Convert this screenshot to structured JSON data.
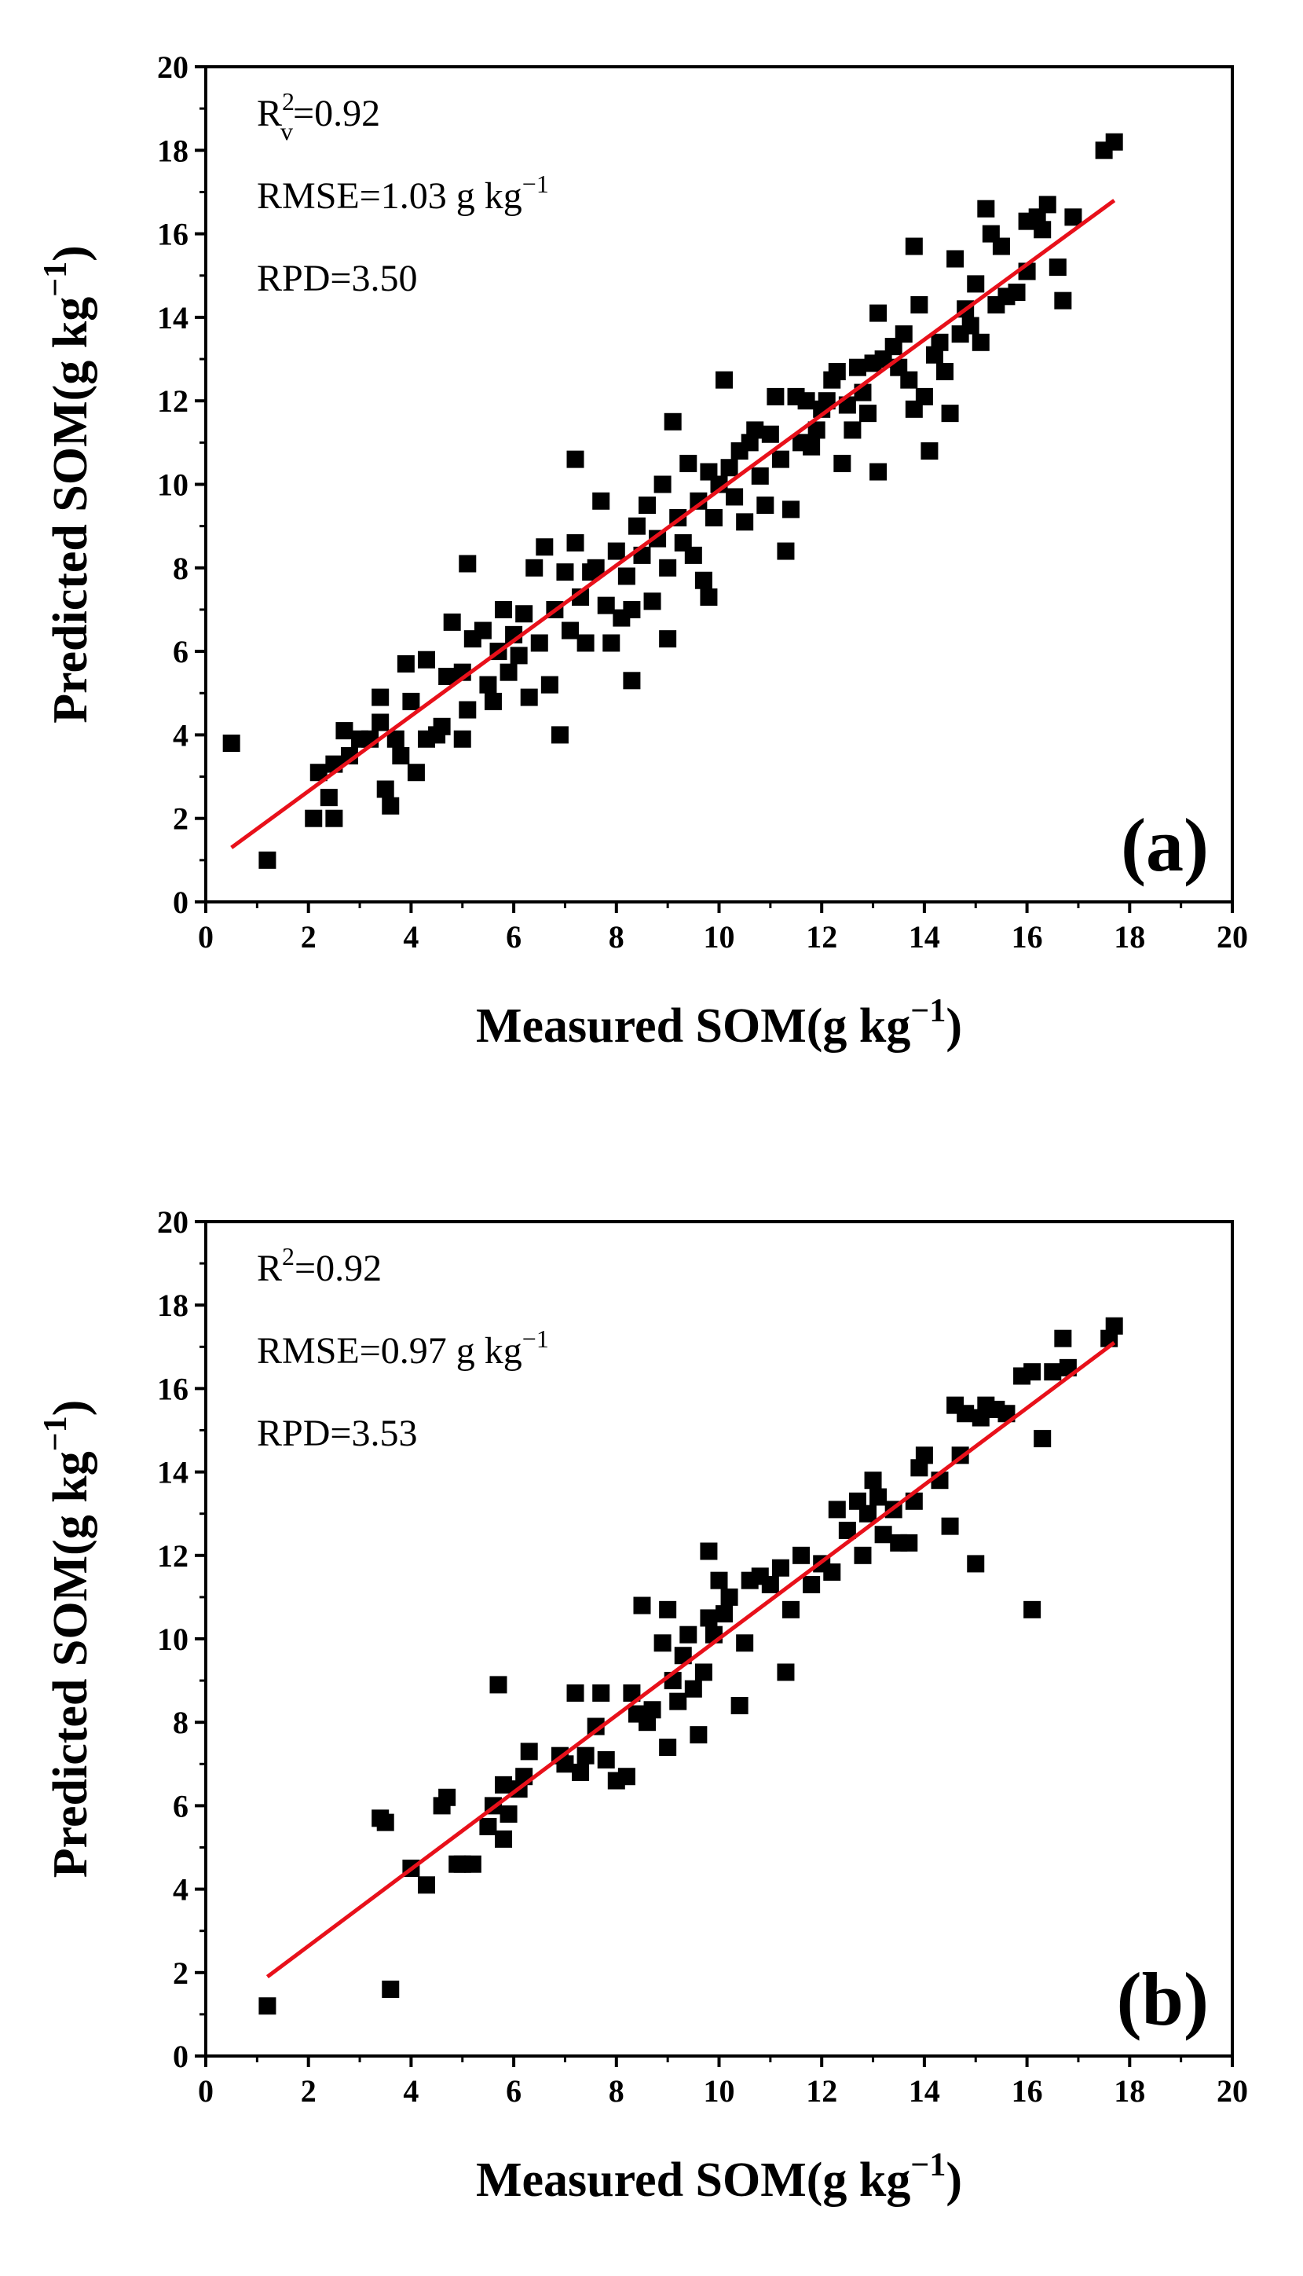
{
  "chart_data": [
    {
      "type": "scatter",
      "panel_label": "(a)",
      "xlabel": "Measured SOM(g kg−1)",
      "ylabel": "Predicted SOM(g kg−1)",
      "xlim": [
        0,
        20
      ],
      "ylim": [
        0,
        20
      ],
      "x_ticks": [
        "0",
        "2",
        "4",
        "6",
        "8",
        "10",
        "12",
        "14",
        "16",
        "18",
        "20"
      ],
      "y_ticks": [
        "0",
        "2",
        "4",
        "6",
        "8",
        "10",
        "12",
        "14",
        "16",
        "18",
        "20"
      ],
      "grid": false,
      "stats": [
        {
          "label": "R",
          "sup": "2",
          "sub": "v",
          "value": "=0.92"
        },
        {
          "label": "RMSE=1.03 g kg",
          "sup": "−1"
        },
        {
          "label": "RPD=3.50"
        }
      ],
      "marker_color": "#000000",
      "fit_color": "#e8101a",
      "fit_line": {
        "x": [
          0.5,
          17.7
        ],
        "y": [
          1.3,
          16.8
        ]
      },
      "points": [
        [
          0.5,
          3.8
        ],
        [
          1.2,
          1.0
        ],
        [
          2.1,
          2.0
        ],
        [
          2.2,
          3.1
        ],
        [
          2.4,
          2.5
        ],
        [
          2.5,
          2.0
        ],
        [
          2.5,
          3.3
        ],
        [
          2.7,
          4.1
        ],
        [
          2.8,
          3.5
        ],
        [
          3.0,
          3.9
        ],
        [
          3.2,
          3.9
        ],
        [
          3.4,
          4.9
        ],
        [
          3.4,
          4.3
        ],
        [
          3.5,
          2.7
        ],
        [
          3.6,
          2.3
        ],
        [
          3.7,
          3.9
        ],
        [
          3.8,
          3.5
        ],
        [
          3.9,
          5.7
        ],
        [
          4.0,
          4.8
        ],
        [
          4.1,
          3.1
        ],
        [
          4.3,
          5.8
        ],
        [
          4.3,
          3.9
        ],
        [
          4.5,
          4.0
        ],
        [
          4.6,
          4.2
        ],
        [
          4.7,
          5.4
        ],
        [
          4.8,
          6.7
        ],
        [
          5.0,
          5.5
        ],
        [
          5.0,
          3.9
        ],
        [
          5.1,
          8.1
        ],
        [
          5.1,
          4.6
        ],
        [
          5.2,
          6.3
        ],
        [
          5.4,
          6.5
        ],
        [
          5.5,
          5.2
        ],
        [
          5.6,
          4.8
        ],
        [
          5.7,
          6.0
        ],
        [
          5.8,
          7.0
        ],
        [
          5.9,
          5.5
        ],
        [
          6.0,
          6.4
        ],
        [
          6.1,
          5.9
        ],
        [
          6.2,
          6.9
        ],
        [
          6.3,
          4.9
        ],
        [
          6.4,
          8.0
        ],
        [
          6.5,
          6.2
        ],
        [
          6.6,
          8.5
        ],
        [
          6.7,
          5.2
        ],
        [
          6.8,
          7.0
        ],
        [
          6.9,
          4.0
        ],
        [
          7.0,
          7.9
        ],
        [
          7.1,
          6.5
        ],
        [
          7.2,
          8.6
        ],
        [
          7.2,
          10.6
        ],
        [
          7.3,
          7.3
        ],
        [
          7.4,
          6.2
        ],
        [
          7.5,
          7.9
        ],
        [
          7.6,
          8.0
        ],
        [
          7.7,
          9.6
        ],
        [
          7.8,
          7.1
        ],
        [
          7.9,
          6.2
        ],
        [
          8.0,
          8.4
        ],
        [
          8.1,
          6.8
        ],
        [
          8.2,
          7.8
        ],
        [
          8.3,
          5.3
        ],
        [
          8.3,
          7.0
        ],
        [
          8.4,
          9.0
        ],
        [
          8.5,
          8.3
        ],
        [
          8.6,
          9.5
        ],
        [
          8.7,
          7.2
        ],
        [
          8.8,
          8.7
        ],
        [
          8.9,
          10.0
        ],
        [
          9.0,
          6.3
        ],
        [
          9.0,
          8.0
        ],
        [
          9.1,
          11.5
        ],
        [
          9.2,
          9.2
        ],
        [
          9.3,
          8.6
        ],
        [
          9.4,
          10.5
        ],
        [
          9.5,
          8.3
        ],
        [
          9.6,
          9.6
        ],
        [
          9.7,
          7.7
        ],
        [
          9.8,
          10.3
        ],
        [
          9.8,
          7.3
        ],
        [
          9.9,
          9.2
        ],
        [
          10.0,
          10.0
        ],
        [
          10.1,
          12.5
        ],
        [
          10.2,
          10.4
        ],
        [
          10.3,
          9.7
        ],
        [
          10.4,
          10.8
        ],
        [
          10.5,
          9.1
        ],
        [
          10.6,
          11.0
        ],
        [
          10.7,
          11.3
        ],
        [
          10.8,
          10.2
        ],
        [
          10.9,
          9.5
        ],
        [
          11.0,
          11.2
        ],
        [
          11.1,
          12.1
        ],
        [
          11.2,
          10.6
        ],
        [
          11.3,
          8.4
        ],
        [
          11.4,
          9.4
        ],
        [
          11.5,
          12.1
        ],
        [
          11.6,
          11.0
        ],
        [
          11.7,
          12.0
        ],
        [
          11.8,
          10.9
        ],
        [
          11.9,
          11.3
        ],
        [
          12.0,
          11.8
        ],
        [
          12.1,
          12.0
        ],
        [
          12.2,
          12.5
        ],
        [
          12.3,
          12.7
        ],
        [
          12.4,
          10.5
        ],
        [
          12.5,
          11.9
        ],
        [
          12.6,
          11.3
        ],
        [
          12.7,
          12.8
        ],
        [
          12.8,
          12.2
        ],
        [
          12.9,
          11.7
        ],
        [
          13.0,
          12.9
        ],
        [
          13.1,
          14.1
        ],
        [
          13.1,
          10.3
        ],
        [
          13.2,
          13.0
        ],
        [
          13.4,
          13.3
        ],
        [
          13.5,
          12.8
        ],
        [
          13.6,
          13.6
        ],
        [
          13.7,
          12.5
        ],
        [
          13.8,
          15.7
        ],
        [
          13.8,
          11.8
        ],
        [
          13.9,
          14.3
        ],
        [
          14.0,
          12.1
        ],
        [
          14.1,
          10.8
        ],
        [
          14.2,
          13.1
        ],
        [
          14.3,
          13.4
        ],
        [
          14.4,
          12.7
        ],
        [
          14.5,
          11.7
        ],
        [
          14.6,
          15.4
        ],
        [
          14.7,
          13.6
        ],
        [
          14.8,
          14.2
        ],
        [
          14.9,
          13.8
        ],
        [
          15.0,
          14.8
        ],
        [
          15.1,
          13.4
        ],
        [
          15.2,
          16.6
        ],
        [
          15.3,
          16.0
        ],
        [
          15.4,
          14.3
        ],
        [
          15.5,
          15.7
        ],
        [
          15.6,
          14.5
        ],
        [
          15.8,
          14.6
        ],
        [
          16.0,
          15.1
        ],
        [
          16.0,
          16.3
        ],
        [
          16.2,
          16.4
        ],
        [
          16.3,
          16.1
        ],
        [
          16.4,
          16.7
        ],
        [
          16.6,
          15.2
        ],
        [
          16.7,
          14.4
        ],
        [
          16.9,
          16.4
        ],
        [
          17.5,
          18.0
        ],
        [
          17.7,
          18.2
        ]
      ]
    },
    {
      "type": "scatter",
      "panel_label": "(b)",
      "xlabel": "Measured SOM(g kg−1)",
      "ylabel": "Predicted SOM(g kg−1)",
      "xlim": [
        0,
        20
      ],
      "ylim": [
        0,
        20
      ],
      "x_ticks": [
        "0",
        "2",
        "4",
        "6",
        "8",
        "10",
        "12",
        "14",
        "16",
        "18",
        "20"
      ],
      "y_ticks": [
        "0",
        "2",
        "4",
        "6",
        "8",
        "10",
        "12",
        "14",
        "16",
        "18",
        "20"
      ],
      "grid": false,
      "stats": [
        {
          "label": "R",
          "sup": "2",
          "value": "=0.92"
        },
        {
          "label": "RMSE=0.97 g kg",
          "sup": "−1"
        },
        {
          "label": "RPD=3.53"
        }
      ],
      "marker_color": "#000000",
      "fit_color": "#e8101a",
      "fit_line": {
        "x": [
          1.2,
          17.7
        ],
        "y": [
          1.9,
          17.1
        ]
      },
      "points": [
        [
          1.2,
          1.2
        ],
        [
          3.4,
          5.7
        ],
        [
          3.5,
          5.6
        ],
        [
          3.6,
          1.6
        ],
        [
          4.0,
          4.5
        ],
        [
          4.3,
          4.1
        ],
        [
          4.6,
          6.0
        ],
        [
          4.7,
          6.2
        ],
        [
          4.9,
          4.6
        ],
        [
          5.0,
          4.6
        ],
        [
          5.2,
          4.6
        ],
        [
          5.5,
          5.5
        ],
        [
          5.6,
          6.0
        ],
        [
          5.7,
          8.9
        ],
        [
          5.8,
          5.2
        ],
        [
          5.8,
          6.5
        ],
        [
          5.9,
          5.8
        ],
        [
          6.1,
          6.4
        ],
        [
          6.2,
          6.7
        ],
        [
          6.3,
          7.3
        ],
        [
          6.9,
          7.2
        ],
        [
          7.0,
          7.0
        ],
        [
          7.2,
          8.7
        ],
        [
          7.3,
          6.8
        ],
        [
          7.4,
          7.2
        ],
        [
          7.6,
          7.9
        ],
        [
          7.7,
          8.7
        ],
        [
          7.8,
          7.1
        ],
        [
          8.0,
          6.6
        ],
        [
          8.2,
          6.7
        ],
        [
          8.3,
          8.7
        ],
        [
          8.4,
          8.2
        ],
        [
          8.5,
          10.8
        ],
        [
          8.6,
          8.0
        ],
        [
          8.7,
          8.3
        ],
        [
          8.9,
          9.9
        ],
        [
          9.0,
          7.4
        ],
        [
          9.0,
          10.7
        ],
        [
          9.1,
          9.0
        ],
        [
          9.2,
          8.5
        ],
        [
          9.3,
          9.6
        ],
        [
          9.4,
          10.1
        ],
        [
          9.5,
          8.8
        ],
        [
          9.6,
          7.7
        ],
        [
          9.7,
          9.2
        ],
        [
          9.8,
          10.5
        ],
        [
          9.8,
          12.1
        ],
        [
          9.9,
          10.1
        ],
        [
          10.0,
          11.4
        ],
        [
          10.1,
          10.6
        ],
        [
          10.2,
          11.0
        ],
        [
          10.4,
          8.4
        ],
        [
          10.5,
          9.9
        ],
        [
          10.6,
          11.4
        ],
        [
          10.8,
          11.5
        ],
        [
          11.0,
          11.3
        ],
        [
          11.2,
          11.7
        ],
        [
          11.3,
          9.2
        ],
        [
          11.4,
          10.7
        ],
        [
          11.6,
          12.0
        ],
        [
          11.8,
          11.3
        ],
        [
          12.0,
          11.8
        ],
        [
          12.2,
          11.6
        ],
        [
          12.3,
          13.1
        ],
        [
          12.5,
          12.6
        ],
        [
          12.7,
          13.3
        ],
        [
          12.8,
          12.0
        ],
        [
          12.9,
          13.0
        ],
        [
          13.0,
          13.8
        ],
        [
          13.1,
          13.4
        ],
        [
          13.2,
          12.5
        ],
        [
          13.4,
          13.1
        ],
        [
          13.5,
          12.3
        ],
        [
          13.7,
          12.3
        ],
        [
          13.8,
          13.3
        ],
        [
          13.9,
          14.1
        ],
        [
          14.0,
          14.4
        ],
        [
          14.3,
          13.8
        ],
        [
          14.5,
          12.7
        ],
        [
          14.6,
          15.6
        ],
        [
          14.7,
          14.4
        ],
        [
          14.8,
          15.4
        ],
        [
          15.0,
          11.8
        ],
        [
          15.1,
          15.3
        ],
        [
          15.2,
          15.6
        ],
        [
          15.4,
          15.5
        ],
        [
          15.6,
          15.4
        ],
        [
          15.9,
          16.3
        ],
        [
          16.1,
          10.7
        ],
        [
          16.1,
          16.4
        ],
        [
          16.3,
          14.8
        ],
        [
          16.5,
          16.4
        ],
        [
          16.7,
          17.2
        ],
        [
          16.8,
          16.5
        ],
        [
          17.6,
          17.2
        ],
        [
          17.7,
          17.5
        ]
      ]
    }
  ]
}
